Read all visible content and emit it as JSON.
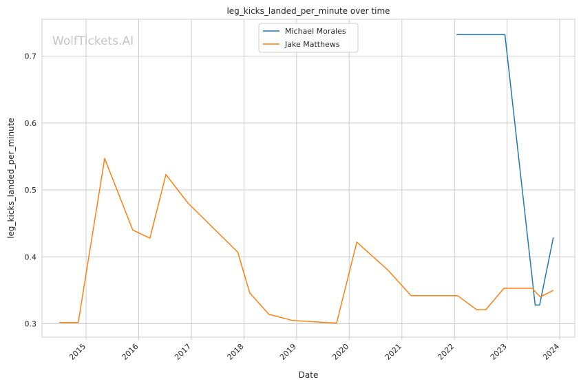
{
  "watermark": "WolfTickets.AI",
  "chart_data": {
    "type": "line",
    "title": "leg_kicks_landed_per_minute over time",
    "xlabel": "Date",
    "ylabel": "leg_kicks_landed_per_minute",
    "x_ticks": [
      "2015",
      "2016",
      "2017",
      "2018",
      "2019",
      "2020",
      "2021",
      "2022",
      "2023",
      "2024"
    ],
    "y_ticks": [
      "0.3",
      "0.4",
      "0.5",
      "0.6",
      "0.7"
    ],
    "xlim": [
      "2014-03-01",
      "2024-04-15"
    ],
    "ylim": [
      0.28,
      0.755
    ],
    "grid": true,
    "legend_position": "top-center",
    "series": [
      {
        "name": "Michael Morales",
        "color": "#1f77b4",
        "points": [
          [
            "2022-01-15",
            0.732
          ],
          [
            "2022-12-17",
            0.732
          ],
          [
            "2023-07-15",
            0.328
          ],
          [
            "2023-08-15",
            0.328
          ],
          [
            "2023-11-18",
            0.429
          ]
        ]
      },
      {
        "name": "Jake Matthews",
        "color": "#ff7f0e",
        "points": [
          [
            "2014-06-28",
            0.302
          ],
          [
            "2014-11-08",
            0.302
          ],
          [
            "2015-05-10",
            0.547
          ],
          [
            "2015-11-21",
            0.44
          ],
          [
            "2016-03-19",
            0.428
          ],
          [
            "2016-07-08",
            0.523
          ],
          [
            "2016-12-10",
            0.48
          ],
          [
            "2017-11-19",
            0.407
          ],
          [
            "2018-02-10",
            0.346
          ],
          [
            "2018-06-23",
            0.314
          ],
          [
            "2018-12-02",
            0.305
          ],
          [
            "2019-10-06",
            0.301
          ],
          [
            "2020-02-23",
            0.422
          ],
          [
            "2020-09-27",
            0.38
          ],
          [
            "2021-03-06",
            0.342
          ],
          [
            "2022-01-22",
            0.342
          ],
          [
            "2022-06-04",
            0.321
          ],
          [
            "2022-08-06",
            0.321
          ],
          [
            "2022-12-10",
            0.353
          ],
          [
            "2023-06-24",
            0.353
          ],
          [
            "2023-08-19",
            0.34
          ],
          [
            "2023-11-18",
            0.35
          ]
        ]
      }
    ]
  }
}
